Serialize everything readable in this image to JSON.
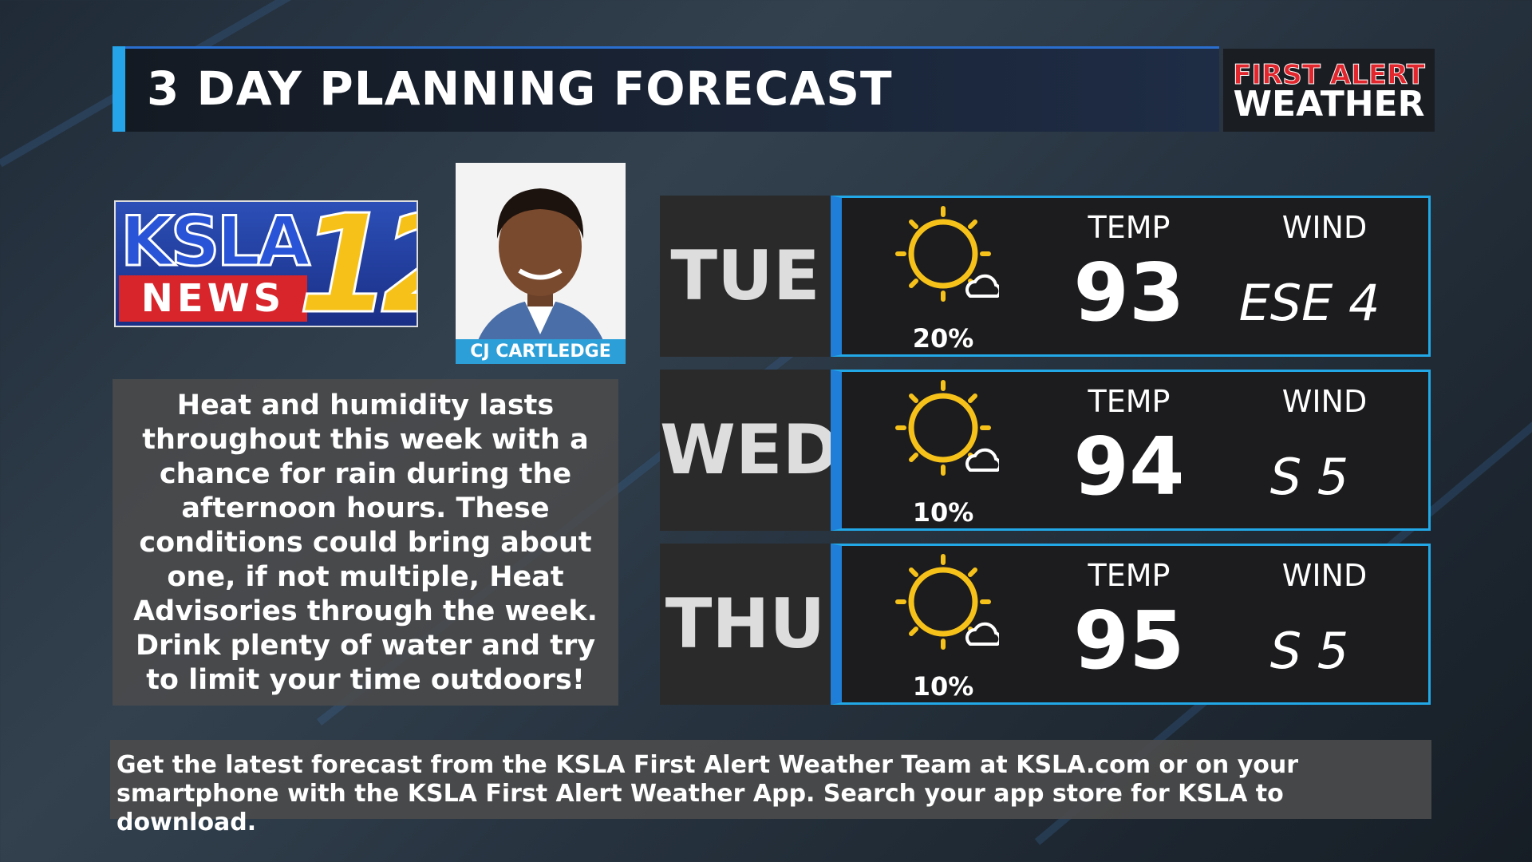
{
  "header": {
    "title": "3 DAY PLANNING FORECAST",
    "brand_line1": "FIRST ALERT",
    "brand_line2": "WEATHER"
  },
  "station_logo": {
    "call_sign": "KSLA",
    "news": "NEWS",
    "channel": "12"
  },
  "presenter": {
    "name": "CJ CARTLEDGE"
  },
  "summary": "Heat and humidity lasts throughout this week with a chance for rain during the afternoon hours. These conditions could bring about one, if not multiple, Heat Advisories through the week. Drink plenty of water and try to limit your time outdoors!",
  "days": [
    {
      "day": "TUE",
      "rain_chance": "20%",
      "temp_label": "TEMP",
      "temp": 93,
      "wind_label": "WIND",
      "wind": "ESE 4"
    },
    {
      "day": "WED",
      "rain_chance": "10%",
      "temp_label": "TEMP",
      "temp": 94,
      "wind_label": "WIND",
      "wind": "S 5"
    },
    {
      "day": "THU",
      "rain_chance": "10%",
      "temp_label": "TEMP",
      "temp": 95,
      "wind_label": "WIND",
      "wind": "S 5"
    }
  ],
  "footer": "Get the latest forecast from the KSLA First Alert Weather Team at KSLA.com or on your smartphone with the KSLA First Alert Weather App. Search your app store for KSLA to download."
}
